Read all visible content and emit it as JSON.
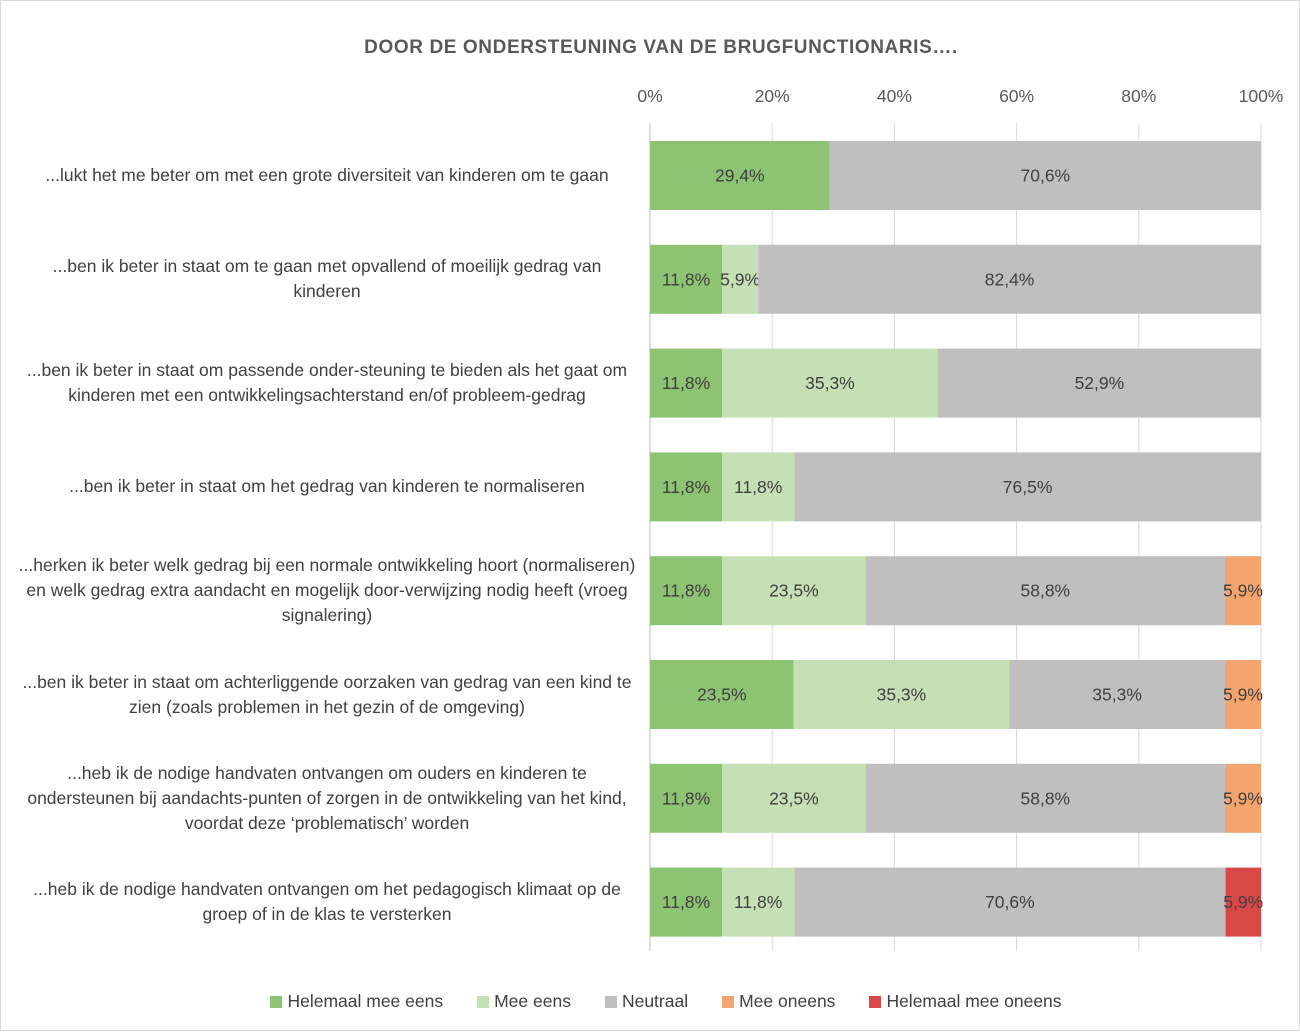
{
  "chart_data": {
    "type": "bar",
    "orientation": "horizontal",
    "stacked": "percent",
    "title": "DOOR DE ONDERSTEUNING VAN DE BRUGFUNCTIONARIS….",
    "xlim": [
      0,
      100
    ],
    "x_ticks": [
      "0%",
      "20%",
      "40%",
      "60%",
      "80%",
      "100%"
    ],
    "grid": true,
    "legend_position": "bottom",
    "categories": [
      "...lukt het me beter om met een grote diversiteit van kinderen om te gaan",
      "...ben ik beter in staat om te gaan met opvallend of moeilijk gedrag van kinderen",
      "...ben ik beter in staat om passende onder-steuning te bieden als het gaat om kinderen met een ontwikkelingsachterstand en/of probleem-gedrag",
      "...ben ik beter in staat om het gedrag van kinderen te normaliseren",
      "...herken ik beter welk gedrag bij een normale ontwikkeling hoort (normaliseren) en welk gedrag extra aandacht en mogelijk door-verwijzing nodig heeft (vroeg signalering)",
      "...ben ik beter in staat om achterliggende oorzaken van gedrag van een kind te zien (zoals problemen in het gezin of de omgeving)",
      "...heb ik de nodige handvaten ontvangen om ouders en kinderen te ondersteunen bij aandachts-punten of zorgen in de ontwikkeling van het kind, voordat deze ‘problematisch’ worden",
      "...heb ik de nodige handvaten ontvangen om het pedagogisch klimaat op de groep of in de klas te versterken"
    ],
    "series": [
      {
        "name": "Helemaal mee eens",
        "color": "#8dc474",
        "values": [
          29.4,
          11.8,
          11.8,
          11.8,
          11.8,
          23.5,
          11.8,
          11.8
        ],
        "labels": [
          "29,4%",
          "11,8%",
          "11,8%",
          "11,8%",
          "11,8%",
          "23,5%",
          "11,8%",
          "11,8%"
        ]
      },
      {
        "name": "Mee eens",
        "color": "#c5e0b4",
        "values": [
          0,
          5.9,
          35.3,
          11.8,
          23.5,
          35.3,
          23.5,
          11.8
        ],
        "labels": [
          "",
          "5,9%",
          "35,3%",
          "11,8%",
          "23,5%",
          "35,3%",
          "23,5%",
          "11,8%"
        ]
      },
      {
        "name": "Neutraal",
        "color": "#bfbfbf",
        "values": [
          70.6,
          82.4,
          52.9,
          76.5,
          58.8,
          35.3,
          58.8,
          70.6
        ],
        "labels": [
          "70,6%",
          "82,4%",
          "52,9%",
          "76,5%",
          "58,8%",
          "35,3%",
          "58,8%",
          "70,6%"
        ]
      },
      {
        "name": "Mee oneens",
        "color": "#f4a56f",
        "values": [
          0,
          0,
          0,
          0,
          5.9,
          5.9,
          5.9,
          0
        ],
        "labels": [
          "",
          "",
          "",
          "",
          "5,9%",
          "5,9%",
          "5,9%",
          ""
        ]
      },
      {
        "name": "Helemaal mee oneens",
        "color": "#d94848",
        "values": [
          0,
          0,
          0,
          0,
          0,
          0,
          0,
          5.9
        ],
        "labels": [
          "",
          "",
          "",
          "",
          "",
          "",
          "",
          "5,9%"
        ]
      }
    ]
  }
}
